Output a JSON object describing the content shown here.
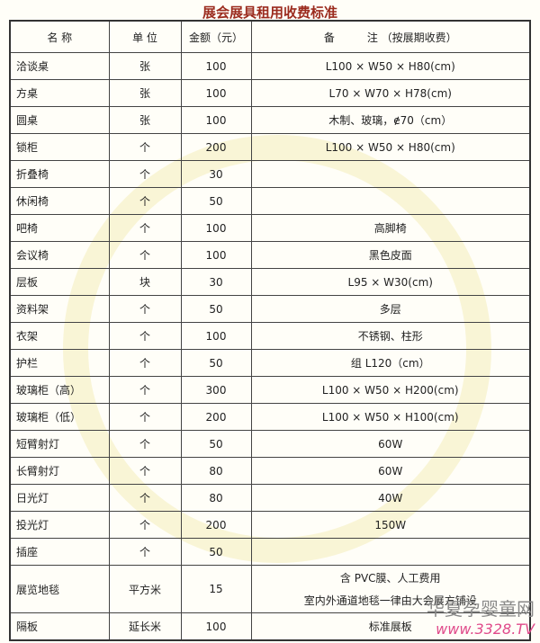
{
  "title": "展会展具租用收费标准",
  "headers": [
    "名  称",
    "单  位",
    "金额（元）",
    "备　　　注 （按展期收费）"
  ],
  "rows": [
    {
      "name": "洽谈桌",
      "unit": "张",
      "price": "100",
      "note": "L100 × W50 × H80(cm)"
    },
    {
      "name": "方桌",
      "unit": "张",
      "price": "100",
      "note": "L70 × W70 × H78(cm)"
    },
    {
      "name": "圆桌",
      "unit": "张",
      "price": "100",
      "note": "木制、玻璃，ɇ70（cm）"
    },
    {
      "name": "锁柜",
      "unit": "个",
      "price": "200",
      "note": "L100 × W50 × H80(cm)"
    },
    {
      "name": "折叠椅",
      "unit": "个",
      "price": "30",
      "note": ""
    },
    {
      "name": "休闲椅",
      "unit": "个",
      "price": "50",
      "note": ""
    },
    {
      "name": "吧椅",
      "unit": "个",
      "price": "100",
      "note": "高脚椅"
    },
    {
      "name": "会议椅",
      "unit": "个",
      "price": "100",
      "note": "黑色皮面"
    },
    {
      "name": "层板",
      "unit": "块",
      "price": "30",
      "note": "L95 × W30(cm)"
    },
    {
      "name": "资料架",
      "unit": "个",
      "price": "50",
      "note": "多层"
    },
    {
      "name": "衣架",
      "unit": "个",
      "price": "100",
      "note": "不锈钢、柱形"
    },
    {
      "name": "护栏",
      "unit": "个",
      "price": "50",
      "note": "组 L120（cm）"
    },
    {
      "name": "玻璃柜（高）",
      "unit": "个",
      "price": "300",
      "note": "L100 × W50 × H200(cm)"
    },
    {
      "name": "玻璃柜（低）",
      "unit": "个",
      "price": "200",
      "note": "L100 × W50 × H100(cm)"
    },
    {
      "name": "短臂射灯",
      "unit": "个",
      "price": "50",
      "note": "60W"
    },
    {
      "name": "长臂射灯",
      "unit": "个",
      "price": "80",
      "note": "60W"
    },
    {
      "name": "日光灯",
      "unit": "个",
      "price": "80",
      "note": "40W"
    },
    {
      "name": "投光灯",
      "unit": "个",
      "price": "200",
      "note": "150W"
    },
    {
      "name": "插座",
      "unit": "个",
      "price": "50",
      "note": ""
    },
    {
      "name": "展览地毯",
      "unit": "平方米",
      "price": "15",
      "note": "含 PVC膜、人工费用",
      "note2": "室内外通道地毯一律由大会展方铺设"
    },
    {
      "name": "隔板",
      "unit": "延长米",
      "price": "100",
      "note": "标准展板"
    }
  ],
  "logo": {
    "text": "华夏孕婴童网",
    "url_text": "www.3328.TV"
  }
}
